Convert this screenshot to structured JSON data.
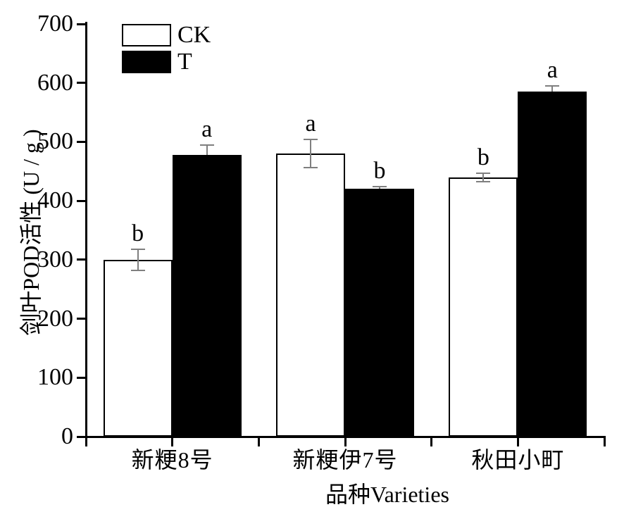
{
  "chart_data": {
    "type": "bar",
    "title": "",
    "xlabel": "品种Varieties",
    "ylabel": "剑叶POD活性 (U / g )",
    "categories": [
      "新粳8号",
      "新粳伊7号",
      "秋田小町"
    ],
    "series": [
      {
        "name": "CK",
        "fill": "#ffffff",
        "values": [
          300,
          480,
          440
        ],
        "errors": [
          18,
          24,
          7
        ],
        "sig_letters": [
          "b",
          "a",
          "b"
        ]
      },
      {
        "name": "T",
        "fill": "#000000",
        "values": [
          478,
          420,
          585
        ],
        "errors": [
          16,
          4,
          10
        ],
        "sig_letters": [
          "a",
          "b",
          "a"
        ]
      }
    ],
    "ylim": [
      0,
      700
    ],
    "yticks": [
      0,
      100,
      200,
      300,
      400,
      500,
      600,
      700
    ],
    "legend_position": "top-left-inside",
    "grid": false
  },
  "colors": {
    "axis": "#000000",
    "bar_border": "#000000",
    "error_bar": "#7f7f7f",
    "background": "#ffffff",
    "text": "#000000"
  }
}
